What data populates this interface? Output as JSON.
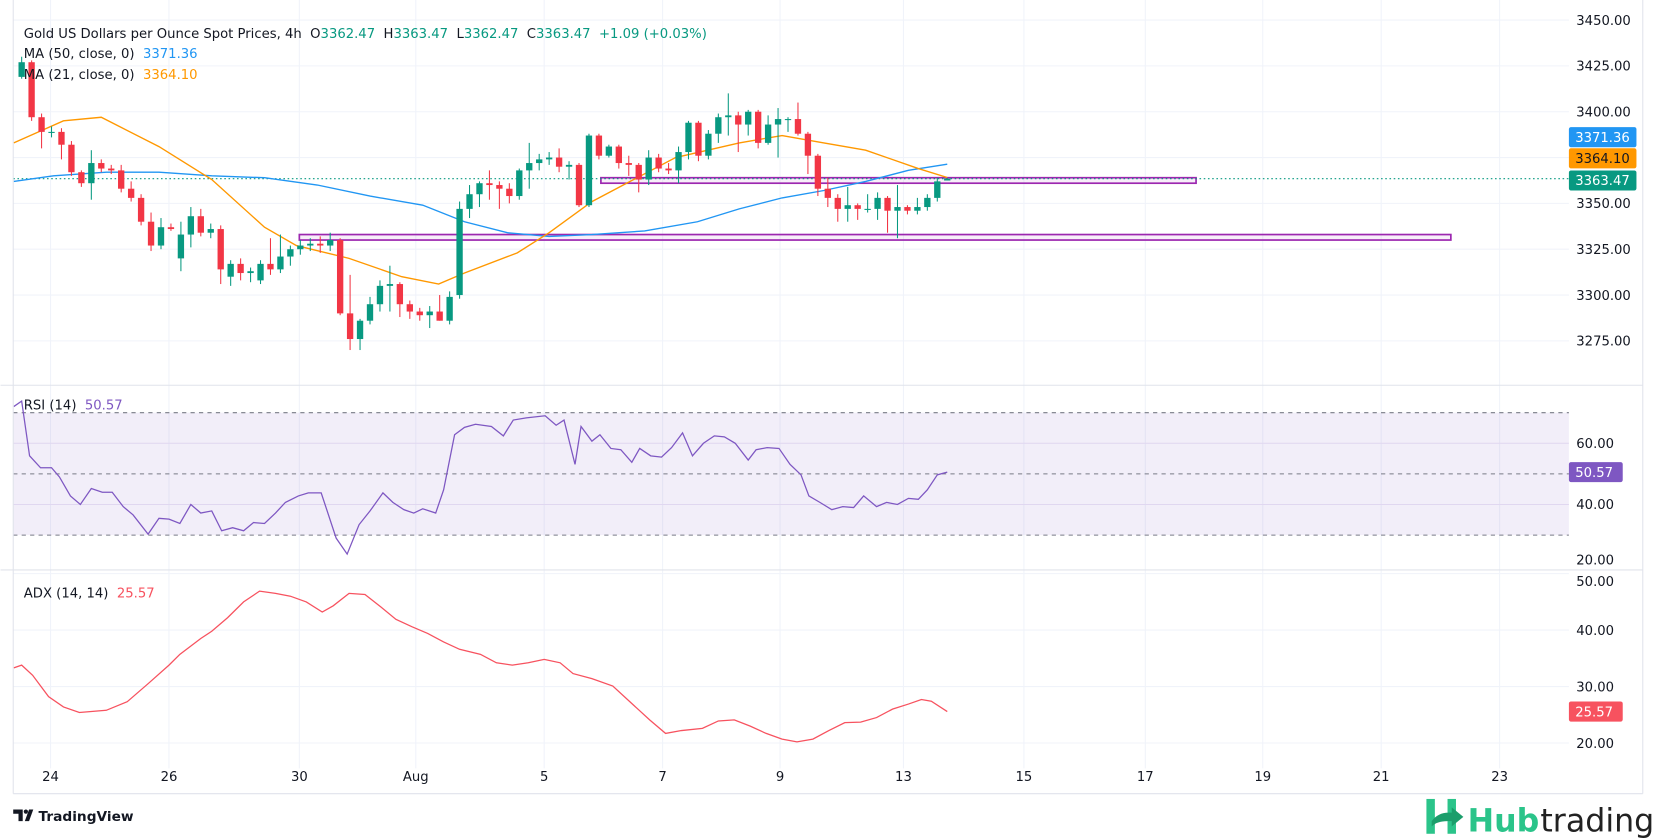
{
  "header": {
    "title": "Gold US Dollars per Ounce Spot Prices, 4h",
    "o_label": "O",
    "o_value": "3362.47",
    "h_label": "H",
    "h_value": "3363.47",
    "l_label": "L",
    "l_value": "3362.47",
    "c_label": "C",
    "c_value": "3363.47",
    "change": "+1.09 (+0.03%)",
    "ma50_label": "MA (50, close, 0)",
    "ma50_value": "3371.36",
    "ma21_label": "MA (21, close, 0)",
    "ma21_value": "3364.10",
    "rsi_label": "RSI (14)",
    "rsi_value": "50.57",
    "adx_label": "ADX (14, 14)",
    "adx_value": "25.57"
  },
  "colors": {
    "up": "#089981",
    "down": "#F23645",
    "ma50": "#2196F3",
    "ma21": "#FF9800",
    "rsi": "#7E57C2",
    "adx": "#F7525F",
    "zone": "#9C27B0",
    "brand": "#2BC48A"
  },
  "branding": {
    "tradingview": "TradingView",
    "hub": "Hub",
    "trading": "trading"
  },
  "chart_data": {
    "type": "candlestick",
    "title": "Gold US Dollars per Ounce Spot Prices, 4h",
    "x_ticks": [
      {
        "label": "24",
        "bar": 2.9
      },
      {
        "label": "26",
        "bar": 14.8
      },
      {
        "label": "30",
        "bar": 27.9
      },
      {
        "label": "Aug",
        "bar": 39.6
      },
      {
        "label": "5",
        "bar": 52.5
      },
      {
        "label": "7",
        "bar": 64.4
      },
      {
        "label": "9",
        "bar": 76.2
      },
      {
        "label": "13",
        "bar": 88.6
      },
      {
        "label": "15",
        "bar": 100.7
      },
      {
        "label": "17",
        "bar": 112.9
      },
      {
        "label": "19",
        "bar": 124.7
      },
      {
        "label": "21",
        "bar": 136.6
      },
      {
        "label": "23",
        "bar": 148.5
      }
    ],
    "price_axis": {
      "range": [
        3257,
        3458
      ],
      "ticks": [
        "3450.00",
        "3425.00",
        "3400.00",
        "3350.00",
        "3325.00",
        "3300.00",
        "3275.00"
      ],
      "tick_values": [
        3450,
        3425,
        3400,
        3350,
        3325,
        3300,
        3275
      ]
    },
    "last_price": 3363.47,
    "badges": [
      {
        "label": "3371.36",
        "value": 3371.36,
        "series": "ma50"
      },
      {
        "label": "3364.10",
        "value": 3364.1,
        "series": "ma21"
      },
      {
        "label": "3363.47",
        "value": 3363.47,
        "series": "price"
      }
    ],
    "candles": [
      [
        3419,
        3430,
        3418,
        3427
      ],
      [
        3427,
        3428,
        3395,
        3397
      ],
      [
        3397,
        3399,
        3380,
        3389
      ],
      [
        3389,
        3392,
        3386,
        3389
      ],
      [
        3389,
        3391,
        3374,
        3382
      ],
      [
        3382,
        3384,
        3365,
        3367
      ],
      [
        3367,
        3368,
        3359,
        3361
      ],
      [
        3361,
        3379,
        3352,
        3372
      ],
      [
        3372,
        3374,
        3367,
        3369
      ],
      [
        3369,
        3371,
        3366,
        3368
      ],
      [
        3368,
        3371,
        3356,
        3358
      ],
      [
        3358,
        3362,
        3351,
        3353
      ],
      [
        3353,
        3355,
        3338,
        3340
      ],
      [
        3340,
        3345,
        3324,
        3327
      ],
      [
        3327,
        3342,
        3325,
        3337
      ],
      [
        3337,
        3339,
        3335,
        3336
      ],
      [
        3320,
        3340,
        3313,
        3333
      ],
      [
        3333,
        3348,
        3326,
        3343
      ],
      [
        3343,
        3347,
        3332,
        3334
      ],
      [
        3334,
        3339,
        3331,
        3336
      ],
      [
        3336,
        3338,
        3306,
        3314
      ],
      [
        3310,
        3319,
        3305,
        3317
      ],
      [
        3317,
        3320,
        3308,
        3312
      ],
      [
        3312,
        3315,
        3307,
        3313
      ],
      [
        3308,
        3319,
        3306,
        3317
      ],
      [
        3317,
        3331,
        3311,
        3314
      ],
      [
        3314,
        3333,
        3312,
        3321
      ],
      [
        3321,
        3327,
        3316,
        3325
      ],
      [
        3325,
        3330,
        3322,
        3327
      ],
      [
        3327,
        3331,
        3324,
        3328
      ],
      [
        3328,
        3332,
        3323,
        3327
      ],
      [
        3327,
        3334,
        3324,
        3330
      ],
      [
        3330,
        3331,
        3289,
        3290
      ],
      [
        3290,
        3311,
        3270,
        3276
      ],
      [
        3276,
        3287,
        3270,
        3286
      ],
      [
        3286,
        3299,
        3284,
        3295
      ],
      [
        3295,
        3308,
        3291,
        3305
      ],
      [
        3305,
        3316,
        3291,
        3306
      ],
      [
        3306,
        3307,
        3288,
        3295
      ],
      [
        3295,
        3297,
        3287,
        3291
      ],
      [
        3291,
        3293,
        3286,
        3289
      ],
      [
        3289,
        3294,
        3282,
        3291
      ],
      [
        3291,
        3300,
        3286,
        3286
      ],
      [
        3286,
        3302,
        3284,
        3299
      ],
      [
        3300,
        3351,
        3298,
        3347
      ],
      [
        3347,
        3360,
        3342,
        3355
      ],
      [
        3355,
        3362,
        3348,
        3361
      ],
      [
        3361,
        3368,
        3352,
        3360
      ],
      [
        3360,
        3362,
        3347,
        3358
      ],
      [
        3358,
        3361,
        3350,
        3354
      ],
      [
        3354,
        3369,
        3352,
        3368
      ],
      [
        3368,
        3383,
        3358,
        3372
      ],
      [
        3372,
        3377,
        3368,
        3374
      ],
      [
        3374,
        3378,
        3371,
        3375
      ],
      [
        3375,
        3380,
        3367,
        3370
      ],
      [
        3370,
        3373,
        3363,
        3371
      ],
      [
        3371,
        3372,
        3348,
        3349
      ],
      [
        3349,
        3388,
        3348,
        3387
      ],
      [
        3387,
        3388,
        3374,
        3376
      ],
      [
        3376,
        3382,
        3375,
        3381
      ],
      [
        3381,
        3382,
        3369,
        3372
      ],
      [
        3372,
        3376,
        3365,
        3371
      ],
      [
        3371,
        3372,
        3356,
        3363
      ],
      [
        3363,
        3379,
        3360,
        3375
      ],
      [
        3375,
        3377,
        3367,
        3369
      ],
      [
        3369,
        3372,
        3366,
        3368
      ],
      [
        3368,
        3381,
        3361,
        3378
      ],
      [
        3378,
        3395,
        3374,
        3394
      ],
      [
        3394,
        3395,
        3373,
        3376
      ],
      [
        3376,
        3390,
        3374,
        3388
      ],
      [
        3388,
        3399,
        3383,
        3397
      ],
      [
        3397,
        3410,
        3387,
        3398
      ],
      [
        3398,
        3400,
        3378,
        3393
      ],
      [
        3393,
        3401,
        3387,
        3400
      ],
      [
        3400,
        3401,
        3380,
        3383
      ],
      [
        3383,
        3398,
        3382,
        3393
      ],
      [
        3393,
        3402,
        3375,
        3396
      ],
      [
        3396,
        3397,
        3389,
        3396
      ],
      [
        3396,
        3405,
        3387,
        3388
      ],
      [
        3388,
        3389,
        3366,
        3376
      ],
      [
        3376,
        3377,
        3354,
        3358
      ],
      [
        3358,
        3364,
        3348,
        3353
      ],
      [
        3353,
        3355,
        3340,
        3347
      ],
      [
        3347,
        3359,
        3340,
        3349
      ],
      [
        3349,
        3350,
        3341,
        3347
      ],
      [
        3347,
        3355,
        3345,
        3347
      ],
      [
        3347,
        3356,
        3341,
        3353
      ],
      [
        3353,
        3354,
        3334,
        3346
      ],
      [
        3346,
        3360,
        3331,
        3348
      ],
      [
        3348,
        3349,
        3344,
        3346
      ],
      [
        3346,
        3353,
        3344,
        3348
      ],
      [
        3348,
        3355,
        3346,
        3353
      ],
      [
        3353,
        3364,
        3351,
        3362
      ],
      [
        3362.47,
        3363.47,
        3362.47,
        3363.47
      ]
    ],
    "ma21": [
      [
        -0.8,
        3383
      ],
      [
        4.2,
        3395
      ],
      [
        8,
        3397
      ],
      [
        13.8,
        3381
      ],
      [
        19.1,
        3363
      ],
      [
        24.4,
        3337
      ],
      [
        27.6,
        3327
      ],
      [
        32.9,
        3320
      ],
      [
        38.2,
        3310
      ],
      [
        41.9,
        3306
      ],
      [
        44.5,
        3312
      ],
      [
        49.8,
        3323
      ],
      [
        53,
        3334
      ],
      [
        57.3,
        3351
      ],
      [
        61.5,
        3363
      ],
      [
        65.7,
        3375
      ],
      [
        72.1,
        3383
      ],
      [
        76.4,
        3387
      ],
      [
        80.6,
        3383
      ],
      [
        84.8,
        3379
      ],
      [
        90.1,
        3369
      ],
      [
        93,
        3364.1
      ]
    ],
    "ma50": [
      [
        -0.8,
        3362
      ],
      [
        3.2,
        3365
      ],
      [
        8.5,
        3367
      ],
      [
        13.8,
        3367
      ],
      [
        19.1,
        3365
      ],
      [
        24.4,
        3364
      ],
      [
        29.7,
        3360
      ],
      [
        35,
        3354
      ],
      [
        40.3,
        3349
      ],
      [
        44.5,
        3340
      ],
      [
        48.8,
        3334
      ],
      [
        53,
        3332
      ],
      [
        57.3,
        3333
      ],
      [
        62.6,
        3335
      ],
      [
        67.9,
        3340
      ],
      [
        72.1,
        3347
      ],
      [
        76.4,
        3353
      ],
      [
        80.6,
        3357
      ],
      [
        84.8,
        3362
      ],
      [
        89.1,
        3368
      ],
      [
        93,
        3371.36
      ]
    ],
    "zones": [
      {
        "from_bar": 58.2,
        "to_bar": 118,
        "top": 3364,
        "bottom": 3361
      },
      {
        "from_bar": 27.9,
        "to_bar": 143.6,
        "top": 3333,
        "bottom": 3330
      }
    ],
    "rsi": {
      "ticks": [
        "60.00",
        "40.00",
        "20.00"
      ],
      "tick_values": [
        60,
        40,
        20
      ],
      "band": [
        30,
        70
      ],
      "mid": 50,
      "points": [
        [
          -0.8,
          72
        ],
        [
          0,
          73.8
        ],
        [
          0.8,
          55.9
        ],
        [
          1.9,
          52
        ],
        [
          3,
          52
        ],
        [
          3.8,
          49
        ],
        [
          4.9,
          42.8
        ],
        [
          5.9,
          40
        ],
        [
          7,
          45.2
        ],
        [
          8.1,
          44
        ],
        [
          9.1,
          44
        ],
        [
          10.2,
          39.3
        ],
        [
          11.2,
          36.6
        ],
        [
          12.7,
          30.3
        ],
        [
          13.8,
          35.5
        ],
        [
          14.8,
          35.2
        ],
        [
          15.9,
          33.8
        ],
        [
          17,
          40
        ],
        [
          18,
          37.2
        ],
        [
          19.1,
          37.9
        ],
        [
          20.1,
          31.4
        ],
        [
          21.2,
          32.4
        ],
        [
          22.3,
          31.4
        ],
        [
          23.3,
          34.1
        ],
        [
          24.4,
          33.8
        ],
        [
          25.5,
          37.2
        ],
        [
          26.5,
          40.7
        ],
        [
          27.8,
          42.8
        ],
        [
          28.8,
          43.8
        ],
        [
          30.1,
          43.8
        ],
        [
          31.6,
          29
        ],
        [
          32.7,
          23.8
        ],
        [
          33.9,
          33.4
        ],
        [
          35,
          37.9
        ],
        [
          36.3,
          43.8
        ],
        [
          37.3,
          40.7
        ],
        [
          38.4,
          38.3
        ],
        [
          39.4,
          37.2
        ],
        [
          40.3,
          38.6
        ],
        [
          41.6,
          37.2
        ],
        [
          42.4,
          44.8
        ],
        [
          43.5,
          62.8
        ],
        [
          44.5,
          65.2
        ],
        [
          45.6,
          66.2
        ],
        [
          47.2,
          65.5
        ],
        [
          48.4,
          62.4
        ],
        [
          49.4,
          67.6
        ],
        [
          50.7,
          68.3
        ],
        [
          52.6,
          69
        ],
        [
          53.7,
          65.9
        ],
        [
          54.5,
          67.6
        ],
        [
          55.6,
          53.1
        ],
        [
          56.2,
          65.5
        ],
        [
          57.3,
          60.7
        ],
        [
          58.1,
          62.8
        ],
        [
          59.2,
          58.3
        ],
        [
          60.2,
          57.9
        ],
        [
          61.3,
          53.8
        ],
        [
          62.1,
          58.3
        ],
        [
          63.2,
          55.9
        ],
        [
          64.3,
          55.5
        ],
        [
          65.3,
          58.6
        ],
        [
          66.4,
          63.4
        ],
        [
          67.4,
          55.9
        ],
        [
          68.5,
          60
        ],
        [
          69.6,
          62.4
        ],
        [
          70.6,
          62.1
        ],
        [
          71.7,
          60
        ],
        [
          73,
          54.5
        ],
        [
          73.8,
          57.9
        ],
        [
          74.9,
          58.6
        ],
        [
          76.1,
          58.3
        ],
        [
          77.2,
          53.1
        ],
        [
          78.3,
          49.7
        ],
        [
          79.1,
          42.8
        ],
        [
          80.2,
          40.7
        ],
        [
          81.4,
          38.3
        ],
        [
          82.5,
          39.3
        ],
        [
          83.6,
          39
        ],
        [
          84.6,
          42.8
        ],
        [
          85.9,
          39.3
        ],
        [
          86.9,
          40.7
        ],
        [
          88,
          40
        ],
        [
          89.1,
          42
        ],
        [
          90.1,
          41.7
        ],
        [
          91,
          44.8
        ],
        [
          92,
          49.7
        ],
        [
          93,
          50.57
        ]
      ]
    },
    "adx": {
      "ticks": [
        "50.00",
        "40.00",
        "30.00",
        "20.00"
      ],
      "tick_values": [
        50,
        40,
        30,
        20
      ],
      "points": [
        [
          -0.8,
          33.3
        ],
        [
          0,
          33.8
        ],
        [
          1.1,
          32
        ],
        [
          2.7,
          28.2
        ],
        [
          4.2,
          26.4
        ],
        [
          5.8,
          25.4
        ],
        [
          8.5,
          25.8
        ],
        [
          10.6,
          27.3
        ],
        [
          12.7,
          30.5
        ],
        [
          14.8,
          33.8
        ],
        [
          15.9,
          35.7
        ],
        [
          18,
          38.5
        ],
        [
          19.1,
          39.8
        ],
        [
          20.7,
          42.2
        ],
        [
          22.3,
          45
        ],
        [
          23.9,
          46.9
        ],
        [
          25.5,
          46.5
        ],
        [
          27,
          46
        ],
        [
          28.6,
          45
        ],
        [
          30.2,
          43.2
        ],
        [
          31.3,
          44.3
        ],
        [
          32.9,
          46.5
        ],
        [
          34.5,
          46.3
        ],
        [
          36.1,
          44.1
        ],
        [
          37.6,
          41.9
        ],
        [
          39.2,
          40.6
        ],
        [
          40.8,
          39.4
        ],
        [
          42.4,
          37.9
        ],
        [
          44,
          36.6
        ],
        [
          46.1,
          35.7
        ],
        [
          47.7,
          34.2
        ],
        [
          49.3,
          33.8
        ],
        [
          50.9,
          34.2
        ],
        [
          52.5,
          34.8
        ],
        [
          54.1,
          34.2
        ],
        [
          55.4,
          32.3
        ],
        [
          57.3,
          31.4
        ],
        [
          59.4,
          30.1
        ],
        [
          61.5,
          26.7
        ],
        [
          63.1,
          24.1
        ],
        [
          64.7,
          21.7
        ],
        [
          66.3,
          22.2
        ],
        [
          68.4,
          22.6
        ],
        [
          70,
          23.9
        ],
        [
          71.6,
          24.1
        ],
        [
          73.2,
          23
        ],
        [
          74.8,
          21.7
        ],
        [
          76.4,
          20.7
        ],
        [
          77.9,
          20.2
        ],
        [
          79.5,
          20.7
        ],
        [
          81.1,
          22.2
        ],
        [
          82.7,
          23.6
        ],
        [
          84.3,
          23.7
        ],
        [
          85.9,
          24.5
        ],
        [
          87.5,
          26
        ],
        [
          89.1,
          26.9
        ],
        [
          90.4,
          27.7
        ],
        [
          91.4,
          27.4
        ],
        [
          93,
          25.57
        ]
      ]
    }
  }
}
